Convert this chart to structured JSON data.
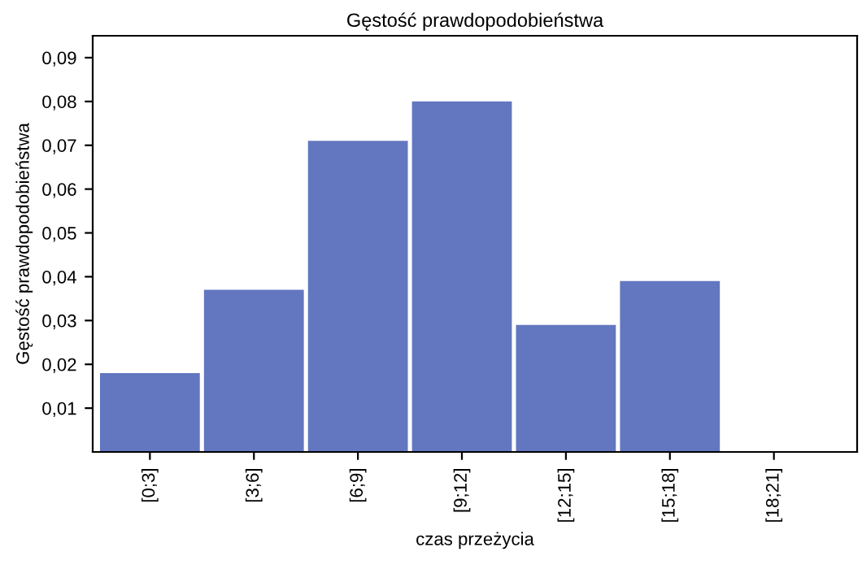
{
  "chart_data": {
    "type": "bar",
    "title": "Gęstość prawdopodobieństwa",
    "xlabel": "czas przeżycia",
    "ylabel": "Gęstość prawdopodobieństwa",
    "categories": [
      "[0;3]",
      "[3;6]",
      "[6;9]",
      "[9;12]",
      "[12;15]",
      "[15;18]",
      "[18;21]"
    ],
    "values": [
      0.018,
      0.037,
      0.071,
      0.08,
      0.029,
      0.039,
      0
    ],
    "color": "#6277bf",
    "ylim": [
      0,
      0.095
    ],
    "yticks": [
      {
        "value": 0.01,
        "label": "0,01"
      },
      {
        "value": 0.02,
        "label": "0,02"
      },
      {
        "value": 0.03,
        "label": "0,03"
      },
      {
        "value": 0.04,
        "label": "0,04"
      },
      {
        "value": 0.05,
        "label": "0,05"
      },
      {
        "value": 0.06,
        "label": "0,06"
      },
      {
        "value": 0.07,
        "label": "0,07"
      },
      {
        "value": 0.08,
        "label": "0,08"
      },
      {
        "value": 0.09,
        "label": "0,09"
      }
    ],
    "grid": false
  }
}
